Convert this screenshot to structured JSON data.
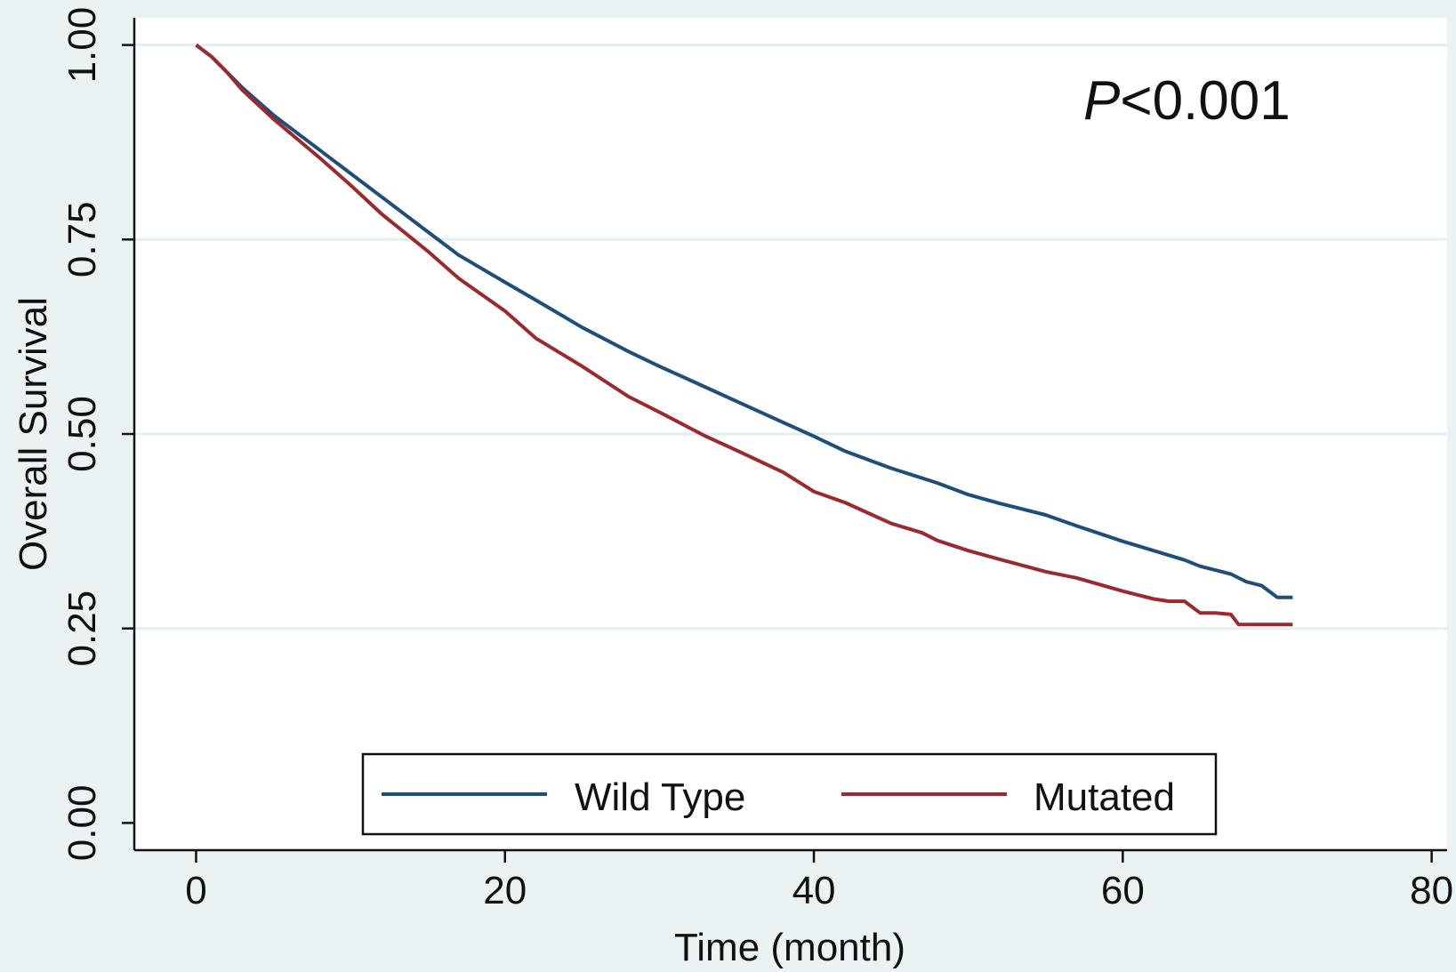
{
  "chart_data": {
    "type": "line",
    "title": "",
    "xlabel": "Time (month)",
    "ylabel": "Overall Survival",
    "xlim": [
      -4,
      81
    ],
    "ylim": [
      -0.035,
      1.035
    ],
    "x_ticks": [
      0,
      20,
      40,
      60,
      80
    ],
    "x_tick_labels": [
      "0",
      "20",
      "40",
      "60",
      "80"
    ],
    "y_ticks": [
      0,
      0.25,
      0.5,
      0.75,
      1
    ],
    "y_tick_labels": [
      "0.00",
      "0.25",
      "0.50",
      "0.75",
      "1.00"
    ],
    "grid": true,
    "legend_position": "bottom",
    "annotation": {
      "italic": "P",
      "text": "<0.001"
    },
    "series": [
      {
        "name": "Wild Type",
        "color": "#1f4e79",
        "x": [
          0,
          1,
          2,
          3,
          5,
          8,
          10,
          12,
          15,
          17,
          20,
          22,
          25,
          28,
          30,
          33,
          35,
          38,
          40,
          42,
          45,
          48,
          50,
          52,
          55,
          57,
          60,
          62,
          64,
          65,
          66,
          67,
          68,
          69,
          70,
          71
        ],
        "y": [
          1.0,
          0.985,
          0.965,
          0.945,
          0.91,
          0.865,
          0.835,
          0.805,
          0.76,
          0.73,
          0.695,
          0.672,
          0.637,
          0.606,
          0.587,
          0.56,
          0.542,
          0.515,
          0.497,
          0.478,
          0.456,
          0.437,
          0.422,
          0.411,
          0.396,
          0.382,
          0.362,
          0.35,
          0.338,
          0.33,
          0.325,
          0.32,
          0.31,
          0.305,
          0.29,
          0.29
        ]
      },
      {
        "name": "Mutated",
        "color": "#9b2a30",
        "x": [
          0,
          1,
          2,
          3,
          5,
          8,
          10,
          12,
          15,
          17,
          20,
          22,
          25,
          28,
          30,
          33,
          35,
          38,
          40,
          42,
          45,
          47,
          48,
          50,
          52,
          55,
          57,
          60,
          62,
          63,
          64,
          65,
          66,
          67,
          67.5,
          68,
          70,
          71
        ],
        "y": [
          1.0,
          0.985,
          0.965,
          0.942,
          0.905,
          0.855,
          0.82,
          0.783,
          0.735,
          0.7,
          0.658,
          0.623,
          0.587,
          0.548,
          0.528,
          0.497,
          0.479,
          0.451,
          0.426,
          0.412,
          0.385,
          0.373,
          0.363,
          0.35,
          0.339,
          0.323,
          0.315,
          0.298,
          0.288,
          0.285,
          0.285,
          0.27,
          0.27,
          0.268,
          0.255,
          0.255,
          0.255,
          0.255
        ]
      }
    ]
  }
}
